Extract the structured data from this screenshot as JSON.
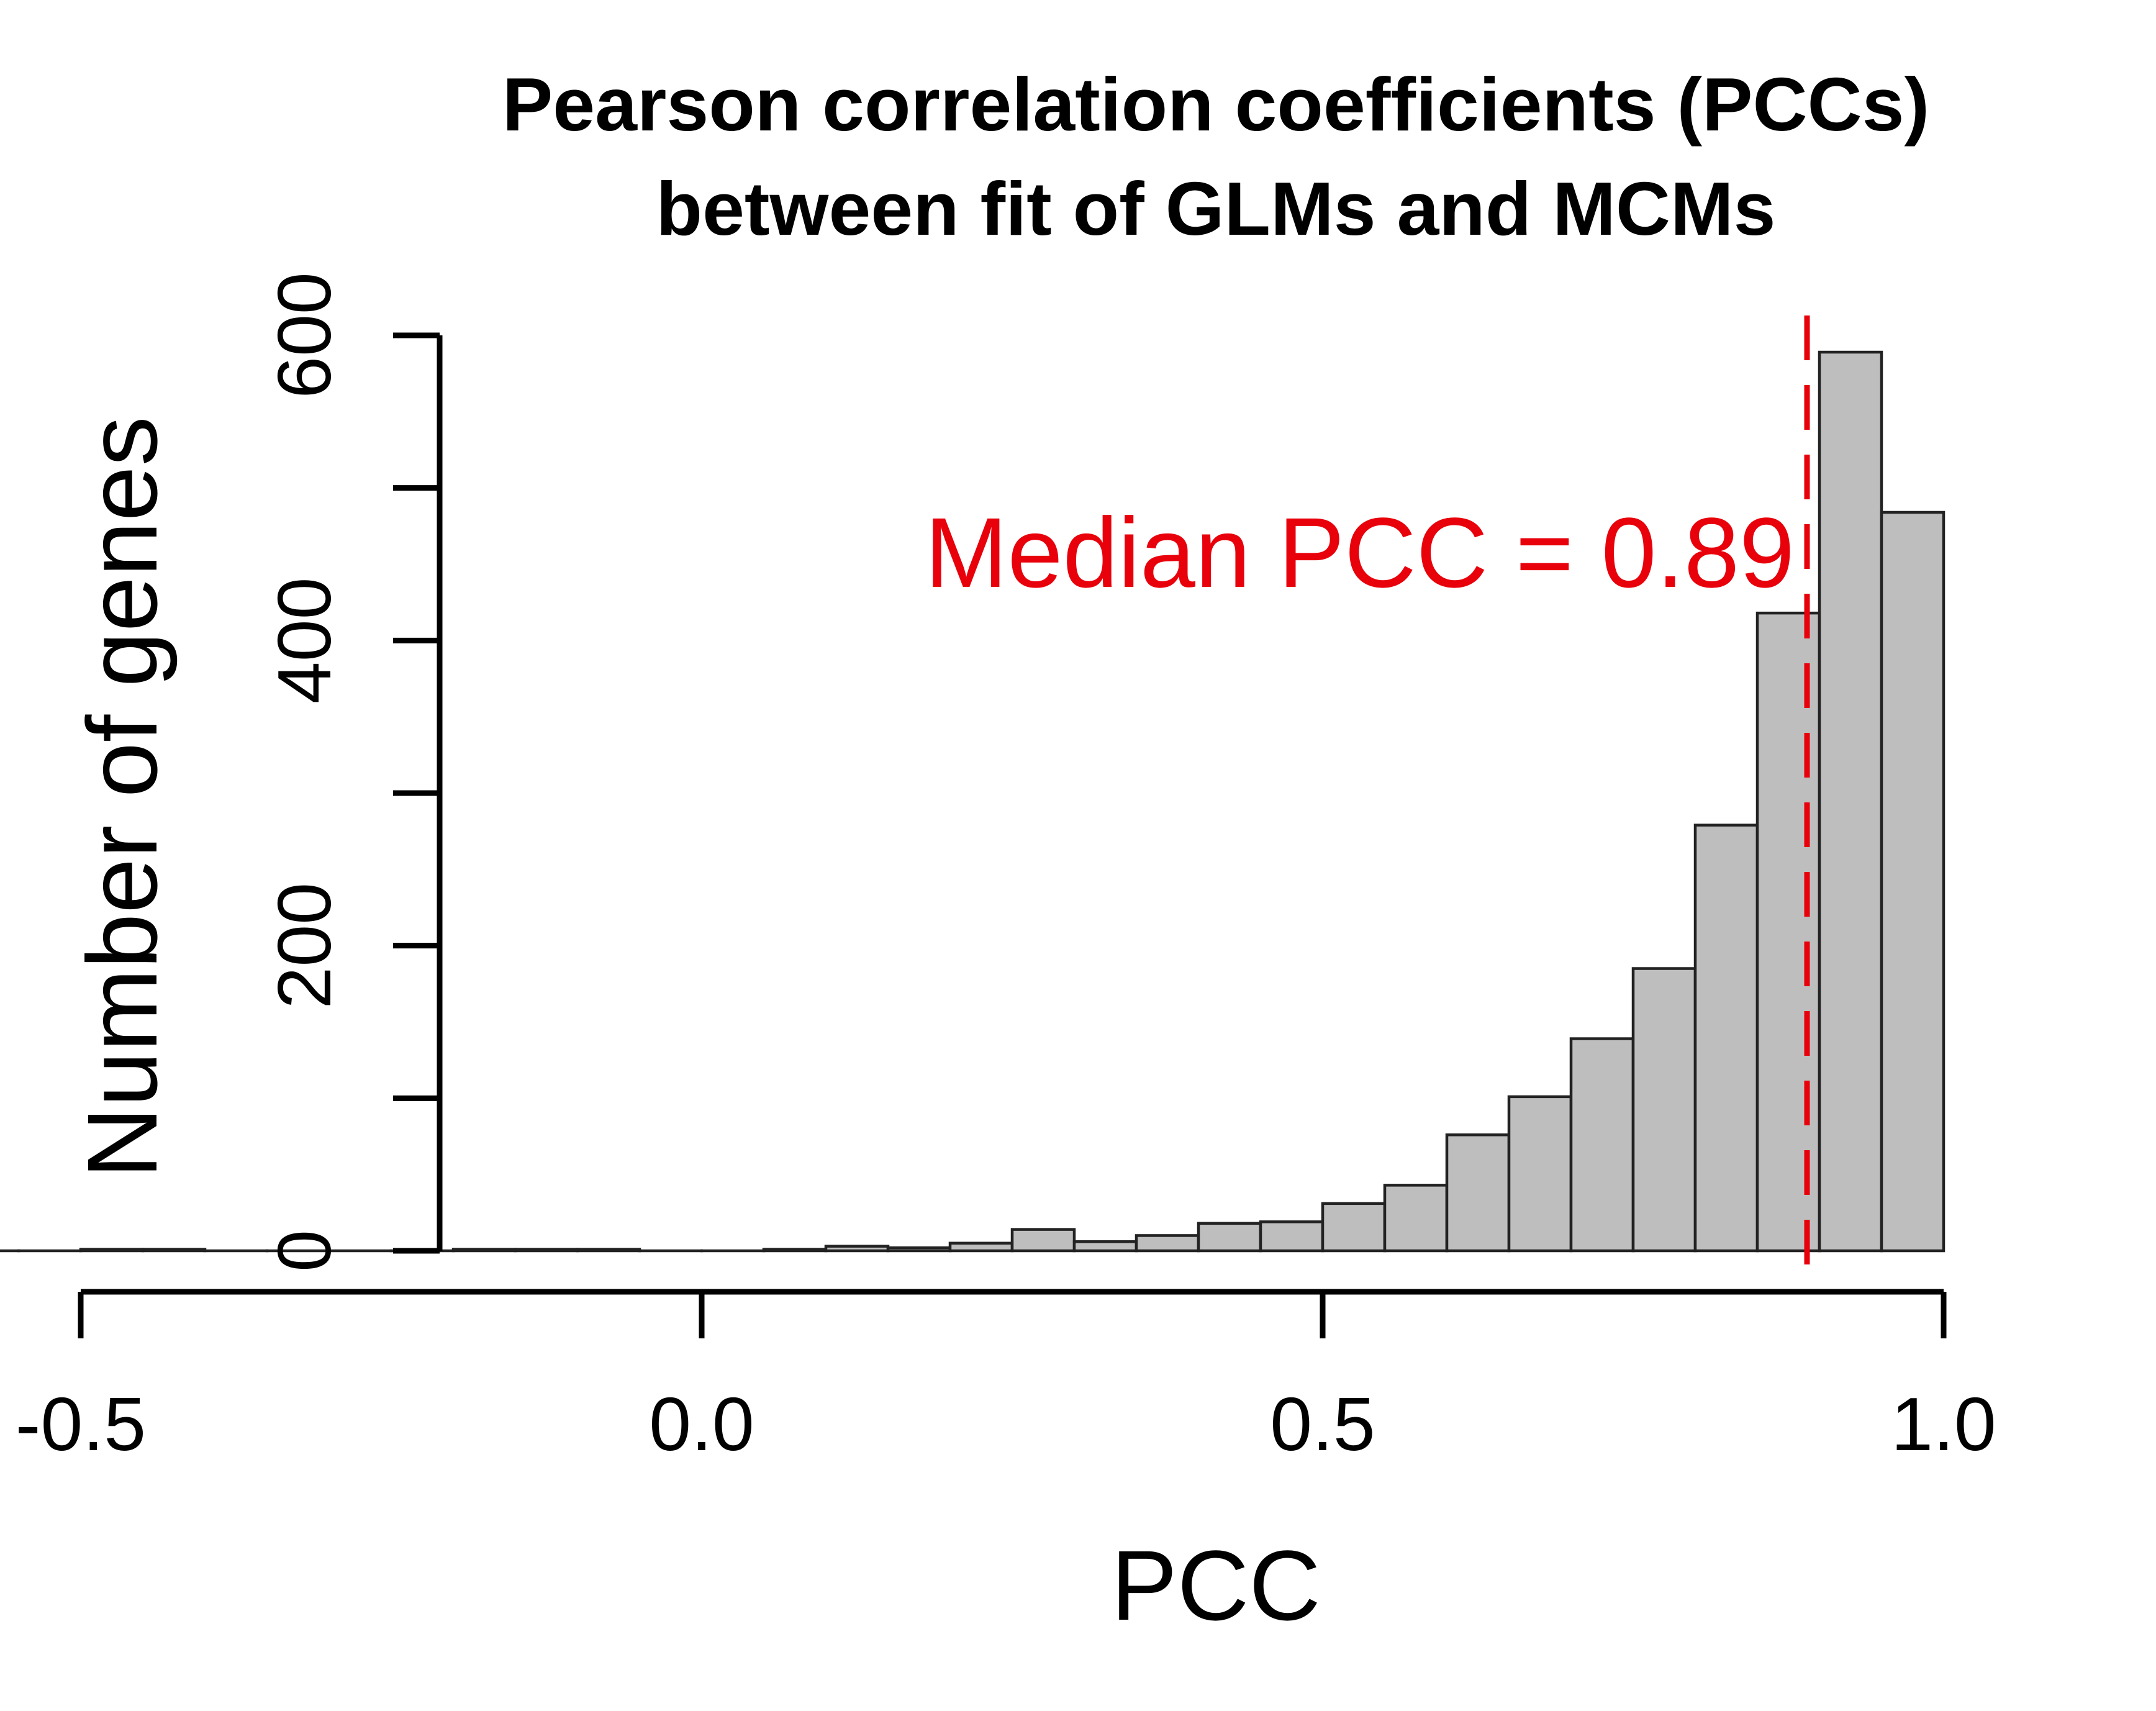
{
  "chart_data": {
    "type": "bar",
    "title": [
      "Pearson correlation coefficients (PCCs)",
      "between fit of GLMs and MCMs"
    ],
    "xlabel": "PCC",
    "ylabel": "Number of genes",
    "xlim": [
      -0.9,
      1.0
    ],
    "ylim": [
      0,
      600
    ],
    "x_ticks": [
      -0.5,
      0.0,
      0.5,
      1.0
    ],
    "x_tick_labels": [
      "-0.5",
      "0.0",
      "0.5",
      "1.0"
    ],
    "y_ticks": [
      0,
      100,
      200,
      300,
      400,
      500,
      600
    ],
    "y_tick_labels": [
      "0",
      "",
      "200",
      "",
      "400",
      "",
      "600"
    ],
    "bin_width": 0.05,
    "bins": [
      {
        "start": -0.75,
        "end": -0.7,
        "count": 1
      },
      {
        "start": -0.7,
        "end": -0.65,
        "count": 0
      },
      {
        "start": -0.65,
        "end": -0.6,
        "count": 0
      },
      {
        "start": -0.6,
        "end": -0.55,
        "count": 0
      },
      {
        "start": -0.55,
        "end": -0.5,
        "count": 0
      },
      {
        "start": -0.5,
        "end": -0.45,
        "count": 1
      },
      {
        "start": -0.45,
        "end": -0.4,
        "count": 1
      },
      {
        "start": -0.4,
        "end": -0.35,
        "count": 0
      },
      {
        "start": -0.35,
        "end": -0.3,
        "count": 0
      },
      {
        "start": -0.3,
        "end": -0.25,
        "count": 0
      },
      {
        "start": -0.25,
        "end": -0.2,
        "count": 0
      },
      {
        "start": -0.2,
        "end": -0.15,
        "count": 1
      },
      {
        "start": -0.15,
        "end": -0.1,
        "count": 1
      },
      {
        "start": -0.1,
        "end": -0.05,
        "count": 1
      },
      {
        "start": -0.05,
        "end": 0.0,
        "count": 0
      },
      {
        "start": 0.0,
        "end": 0.05,
        "count": 0
      },
      {
        "start": 0.05,
        "end": 0.1,
        "count": 1
      },
      {
        "start": 0.1,
        "end": 0.15,
        "count": 3
      },
      {
        "start": 0.15,
        "end": 0.2,
        "count": 2
      },
      {
        "start": 0.2,
        "end": 0.25,
        "count": 5
      },
      {
        "start": 0.25,
        "end": 0.3,
        "count": 14
      },
      {
        "start": 0.3,
        "end": 0.35,
        "count": 6
      },
      {
        "start": 0.35,
        "end": 0.4,
        "count": 10
      },
      {
        "start": 0.4,
        "end": 0.45,
        "count": 18
      },
      {
        "start": 0.45,
        "end": 0.5,
        "count": 19
      },
      {
        "start": 0.5,
        "end": 0.55,
        "count": 31
      },
      {
        "start": 0.55,
        "end": 0.6,
        "count": 43
      },
      {
        "start": 0.6,
        "end": 0.65,
        "count": 76
      },
      {
        "start": 0.65,
        "end": 0.7,
        "count": 101
      },
      {
        "start": 0.7,
        "end": 0.75,
        "count": 139
      },
      {
        "start": 0.75,
        "end": 0.8,
        "count": 185
      },
      {
        "start": 0.8,
        "end": 0.85,
        "count": 279
      },
      {
        "start": 0.85,
        "end": 0.9,
        "count": 418
      },
      {
        "start": 0.9,
        "end": 0.95,
        "count": 589
      },
      {
        "start": 0.95,
        "end": 1.0,
        "count": 484
      }
    ],
    "median_line": {
      "x": 0.89,
      "color": "#e8000b",
      "style": "dashed"
    },
    "annotation": {
      "text": "Median PCC = 0.89",
      "color": "#e8000b"
    },
    "bar_color": "#bebebe",
    "grid": false,
    "legend": "none"
  }
}
